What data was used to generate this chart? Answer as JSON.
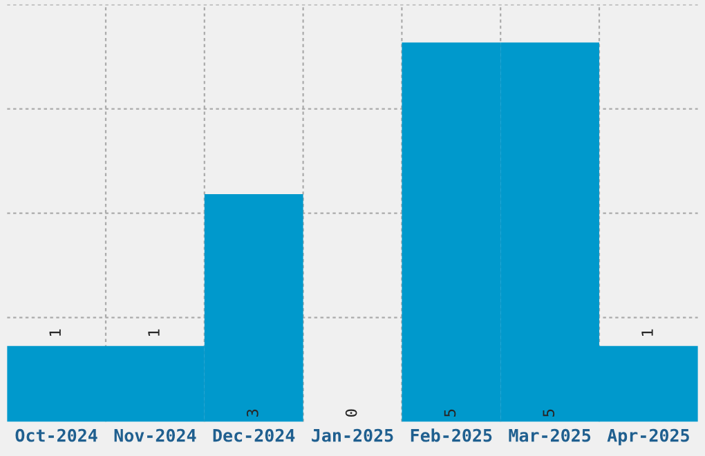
{
  "chart_data": {
    "type": "bar",
    "categories": [
      "Oct-2024",
      "Nov-2024",
      "Dec-2024",
      "Jan-2025",
      "Feb-2025",
      "Mar-2025",
      "Apr-2025"
    ],
    "values": [
      1,
      1,
      3,
      0,
      5,
      5,
      1
    ],
    "color": "#0099cc",
    "ylim": [
      0,
      5.5
    ],
    "yticks": [
      {
        "value": 1.375,
        "label": null
      },
      {
        "value": 2.75,
        "label": null
      },
      {
        "value": 4.125,
        "label": null
      },
      {
        "value": 5.5,
        "label": null
      }
    ],
    "grid": true,
    "data_labels": true
  }
}
